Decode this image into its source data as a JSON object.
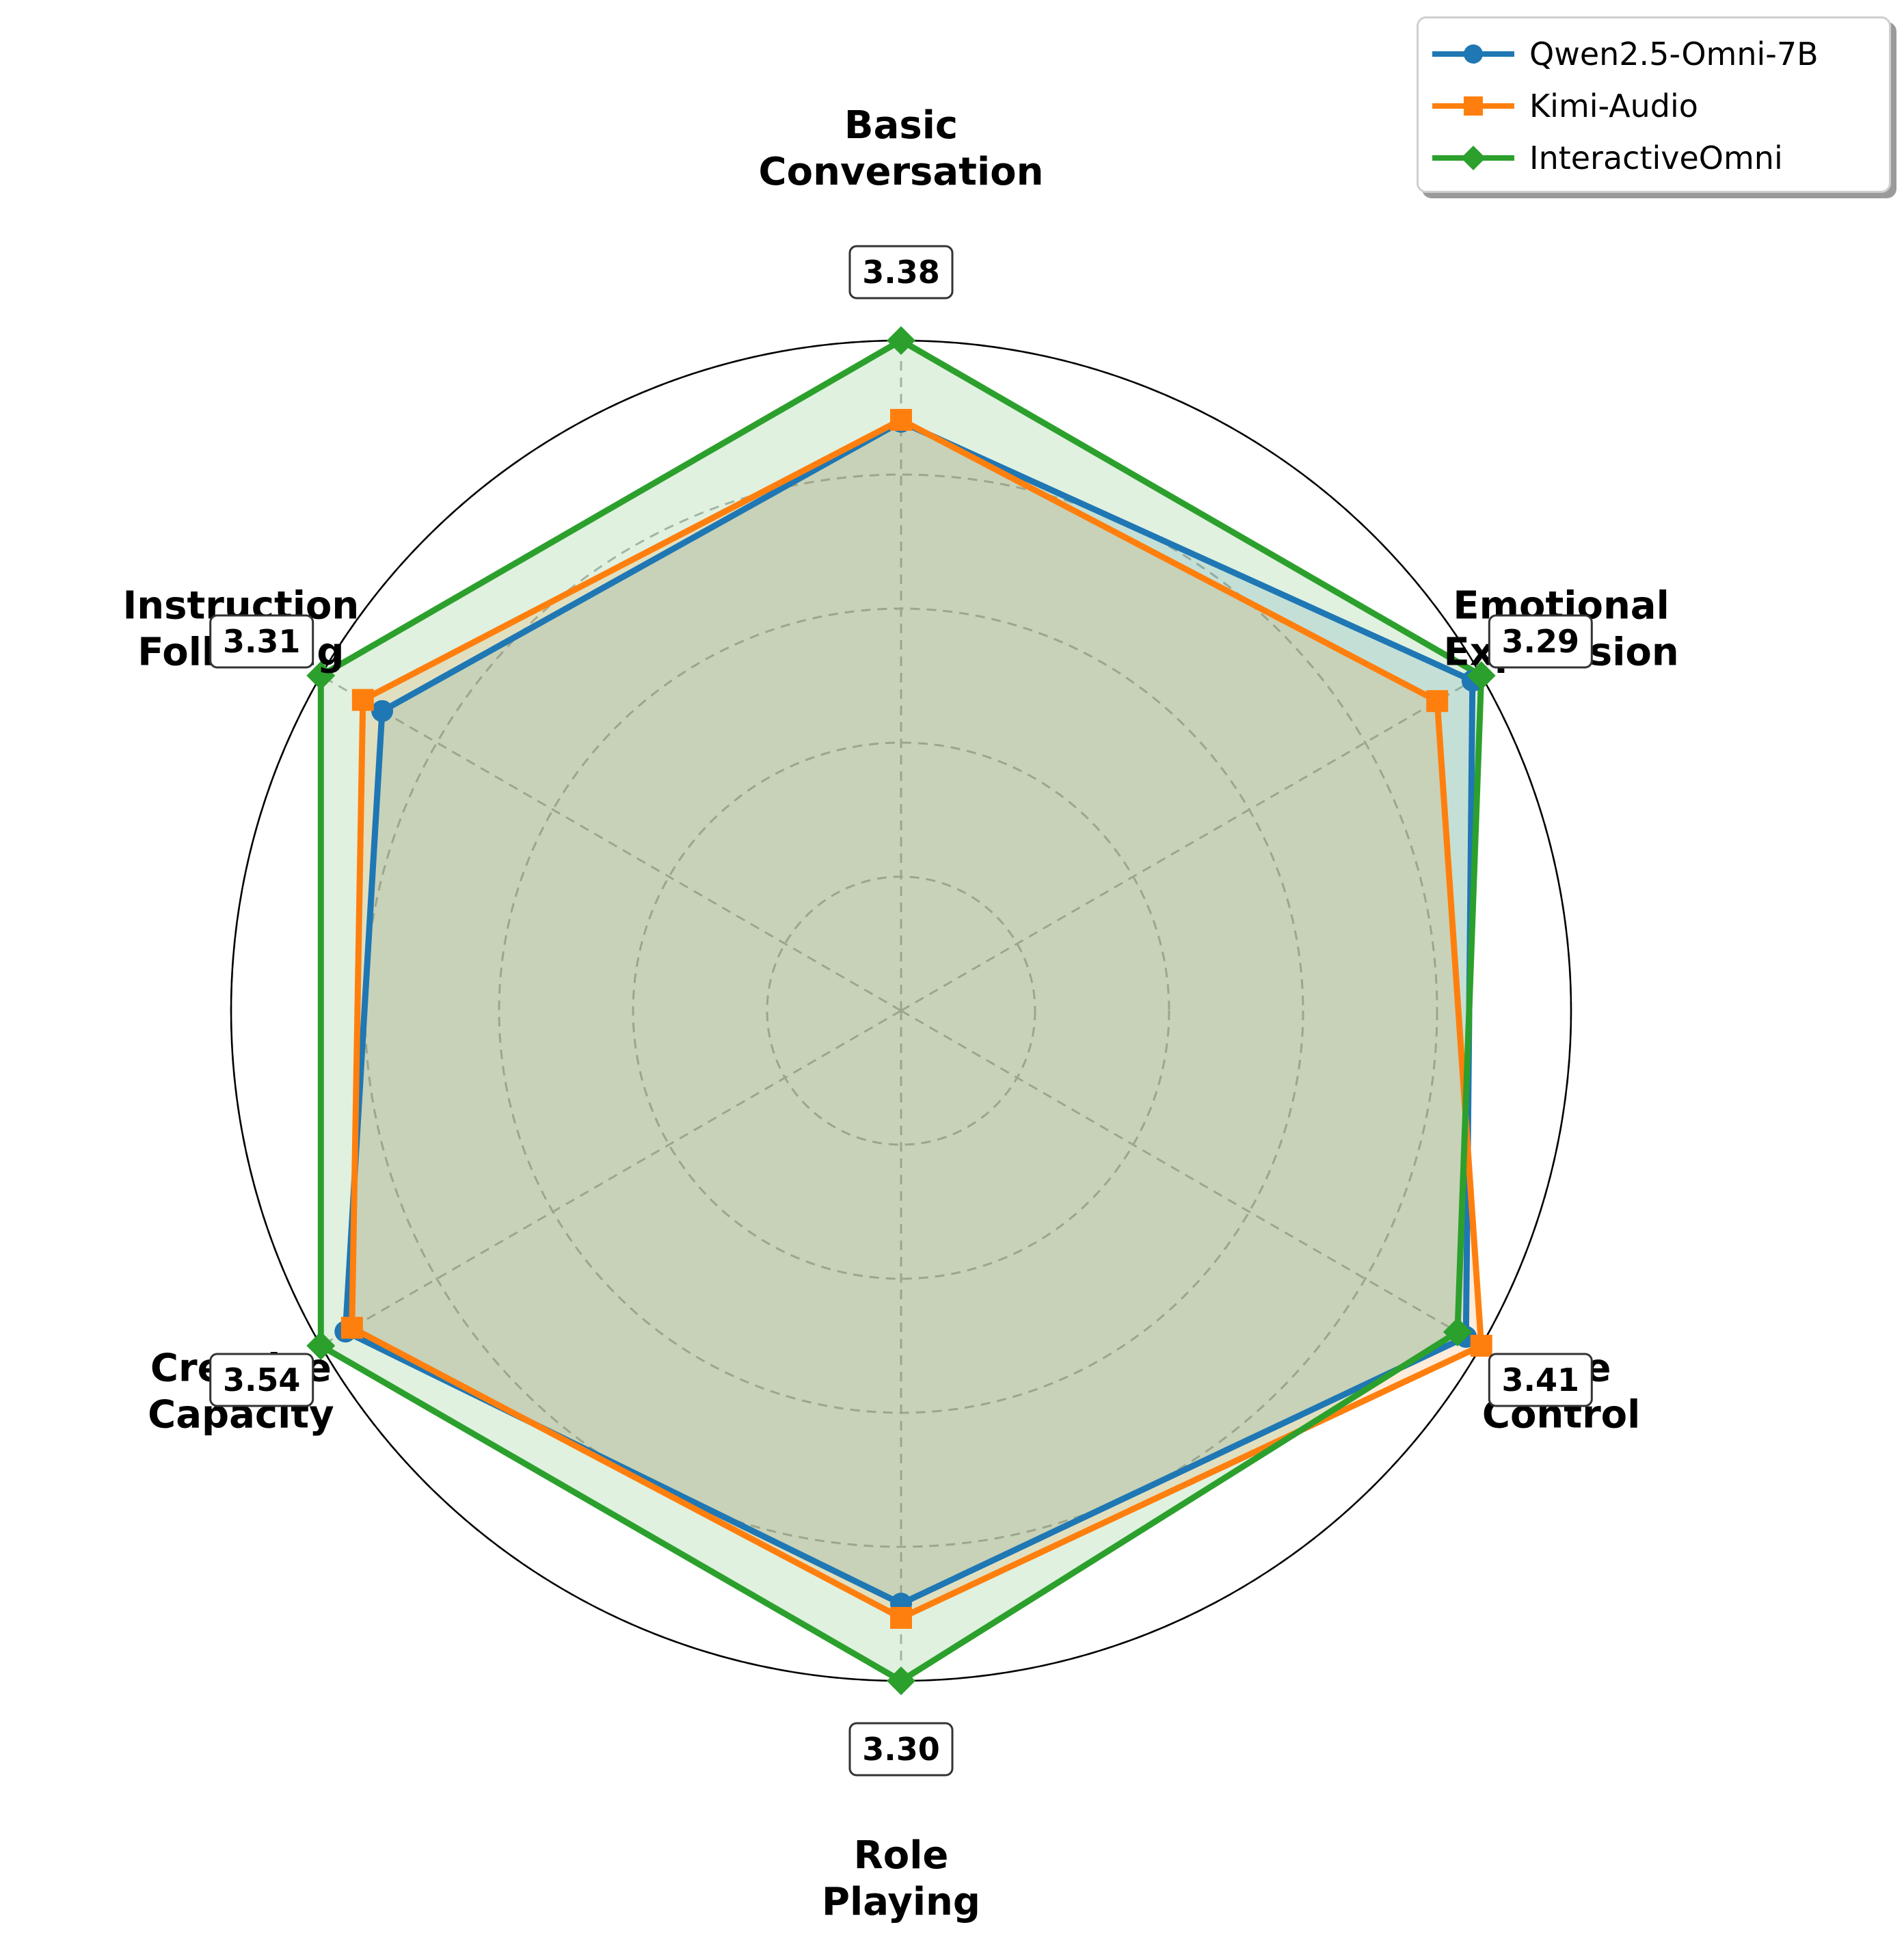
{
  "chart_data": {
    "type": "radar",
    "axes": [
      {
        "label_lines": [
          "Basic",
          "Conversation"
        ],
        "max_label": "3.38"
      },
      {
        "label_lines": [
          "Emotional",
          "Expression"
        ],
        "max_label": "3.29"
      },
      {
        "label_lines": [
          "Rate",
          "Control"
        ],
        "max_label": "3.41"
      },
      {
        "label_lines": [
          "Role",
          "Playing"
        ],
        "max_label": "3.30"
      },
      {
        "label_lines": [
          "Creative",
          "Capacity"
        ],
        "max_label": "3.54"
      },
      {
        "label_lines": [
          "Instruction",
          "Following"
        ],
        "max_label": "3.31"
      }
    ],
    "axis_max": [
      3.38,
      3.29,
      3.41,
      3.3,
      3.54,
      3.31
    ],
    "series": [
      {
        "name": "Qwen2.5-Omni-7B",
        "marker": "circle",
        "color": "#1f77b4",
        "values": [
          2.97,
          3.24,
          3.32,
          2.92,
          3.39,
          2.96
        ]
      },
      {
        "name": "Kimi-Audio",
        "marker": "square",
        "color": "#ff7f0e",
        "values": [
          2.98,
          3.04,
          3.41,
          2.99,
          3.35,
          3.07
        ]
      },
      {
        "name": "InteractiveOmni",
        "marker": "diamond",
        "color": "#2ca02c",
        "values": [
          3.38,
          3.29,
          3.27,
          3.3,
          3.54,
          3.31
        ]
      }
    ],
    "grid": true,
    "legend_position": "top-right"
  }
}
